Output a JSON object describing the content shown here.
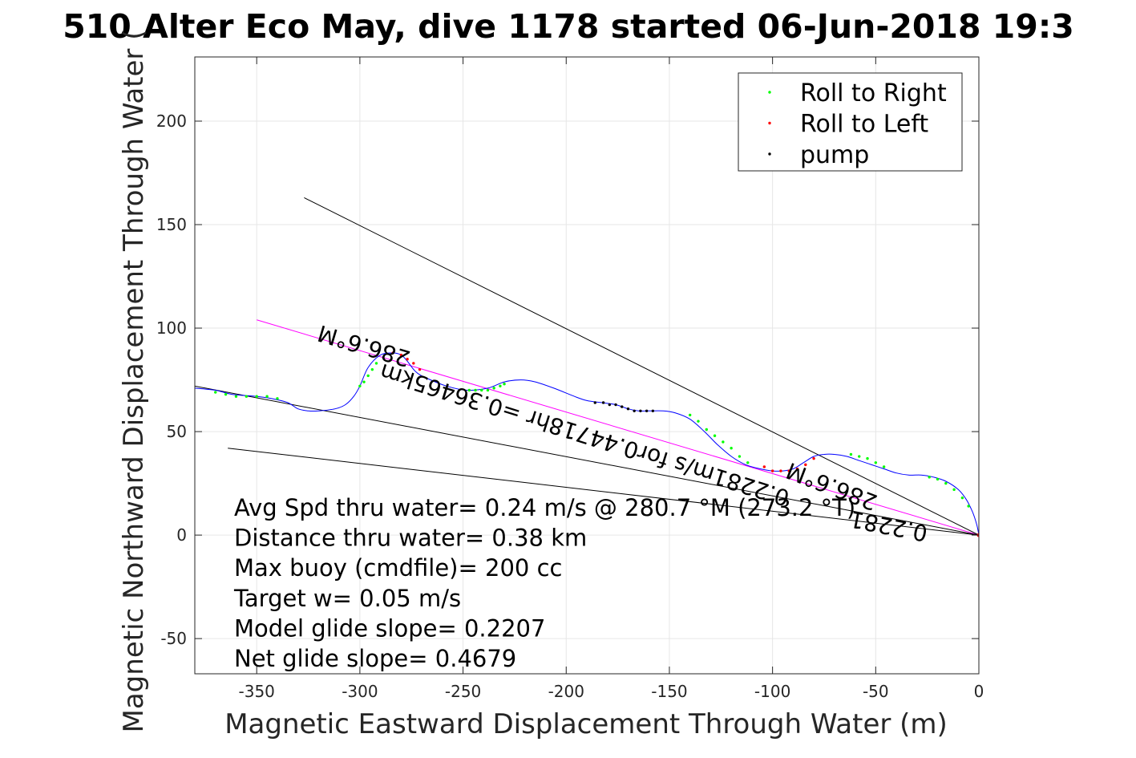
{
  "chart_data": {
    "type": "line",
    "title": "510 Alter Eco May, dive 1178 started 06-Jun-2018 19:3",
    "xlabel": "Magnetic Eastward Displacement Through Water (m)",
    "ylabel": "Magnetic Northward Displacement Through Water (",
    "xlim": [
      -380,
      0
    ],
    "ylim": [
      -67,
      231
    ],
    "xticks": [
      -350,
      -300,
      -250,
      -200,
      -150,
      -100,
      -50,
      0
    ],
    "yticks": [
      -50,
      0,
      50,
      100,
      150,
      200
    ],
    "grid": true,
    "legend": {
      "placement": "top-right",
      "entries": [
        {
          "label": "Roll to Right",
          "color": "#00ff00"
        },
        {
          "label": "Roll to Left",
          "color": "#ff0000"
        },
        {
          "label": "pump",
          "color": "#000000"
        }
      ]
    },
    "track": {
      "color": "#0000ff",
      "x": [
        -380,
        -370,
        -362,
        -350,
        -343,
        -335,
        -330,
        -325,
        -320,
        -312,
        -307,
        -303,
        -300,
        -296,
        -290,
        -284,
        -280,
        -277,
        -273,
        -268,
        -258,
        -248,
        -238,
        -230,
        -222,
        -215,
        -206,
        -196,
        -190,
        -183,
        -176,
        -170,
        -165,
        -160,
        -153,
        -147,
        -140,
        -133,
        -127,
        -120,
        -113,
        -106,
        -100,
        -95,
        -90,
        -85,
        -80,
        -75,
        -70,
        -64,
        -58,
        -52,
        -46,
        -40,
        -34,
        -28,
        -22,
        -16,
        -10,
        -6,
        -3,
        -1,
        0
      ],
      "y": [
        71,
        70,
        68,
        67,
        66,
        64,
        61,
        60,
        60,
        61,
        63,
        67,
        72,
        81,
        87,
        88,
        87,
        84,
        79,
        76,
        72,
        70,
        71,
        74,
        75,
        74,
        71,
        67,
        65,
        64,
        63,
        61,
        60,
        60,
        60,
        59,
        56,
        50,
        44,
        38,
        34,
        32,
        31,
        31,
        32,
        35,
        38,
        39,
        39,
        38,
        36,
        34,
        32,
        30,
        29,
        29,
        28,
        26,
        22,
        17,
        11,
        5,
        0
      ]
    },
    "roll_right": {
      "x": [
        -370,
        -365,
        -360,
        -355,
        -350,
        -345,
        -340,
        -300,
        -298,
        -296,
        -294,
        -292,
        -230,
        -232,
        -235,
        -238,
        -241,
        -244,
        -247,
        -140,
        -136,
        -132,
        -128,
        -124,
        -120,
        -116,
        -112,
        -62,
        -58,
        -54,
        -50,
        -46,
        -24,
        -20,
        -16,
        -12,
        -8,
        -5
      ],
      "y": [
        69,
        68,
        67,
        67,
        67,
        67,
        66,
        72,
        74,
        77,
        80,
        83,
        73,
        72,
        71,
        70,
        70,
        70,
        70,
        58,
        55,
        51,
        48,
        45,
        42,
        38,
        35,
        39,
        38,
        37,
        35,
        33,
        28,
        27,
        25,
        22,
        18,
        14
      ]
    },
    "roll_left": {
      "x": [
        -284,
        -280,
        -277,
        -274,
        -271,
        -104,
        -100,
        -96,
        -92,
        -88,
        -84,
        -80
      ],
      "y": [
        88,
        87,
        85,
        83,
        80,
        33,
        31,
        31,
        31,
        32,
        34,
        37
      ]
    },
    "pump": {
      "x": [
        -186,
        -182,
        -179,
        -176,
        -173,
        -170,
        -167,
        -164,
        -161,
        -158
      ],
      "y": [
        64,
        64,
        63,
        63,
        62,
        61,
        60,
        60,
        60,
        60
      ]
    },
    "lines": [
      {
        "name": "avg",
        "color": "#ff00ff",
        "x": [
          -350,
          0
        ],
        "y": [
          104,
          0
        ]
      },
      {
        "name": "net",
        "color": "#000000",
        "x": [
          -380,
          0
        ],
        "y": [
          72,
          0
        ]
      },
      {
        "name": "upper",
        "color": "#000000",
        "x": [
          -327,
          0
        ],
        "y": [
          163,
          0
        ]
      },
      {
        "name": "lower",
        "color": "#000000",
        "x": [
          -364,
          0
        ],
        "y": [
          42,
          0
        ]
      }
    ],
    "annotations": [
      {
        "text": "286.6°M",
        "x": -297,
        "y": 95,
        "rotation": 16.5
      },
      {
        "text": "0.2281m/s for0.44718hr =0.36465km",
        "x": -190,
        "y": 52,
        "rotation": 17.4
      },
      {
        "text": "286.6°M",
        "x": -70,
        "y": 27,
        "rotation": 21
      },
      {
        "text": "0.2281",
        "x": -43,
        "y": 8,
        "rotation": 11
      }
    ],
    "stats": [
      "Avg Spd thru water=  0.24 m/s @ 280.7 °M (273.2 °T)",
      "Distance thru water=  0.38 km",
      "Max buoy (cmdfile)= 200 cc",
      "Target w= 0.05 m/s",
      "Model glide slope= 0.2207",
      "Net glide slope= 0.4679"
    ]
  }
}
